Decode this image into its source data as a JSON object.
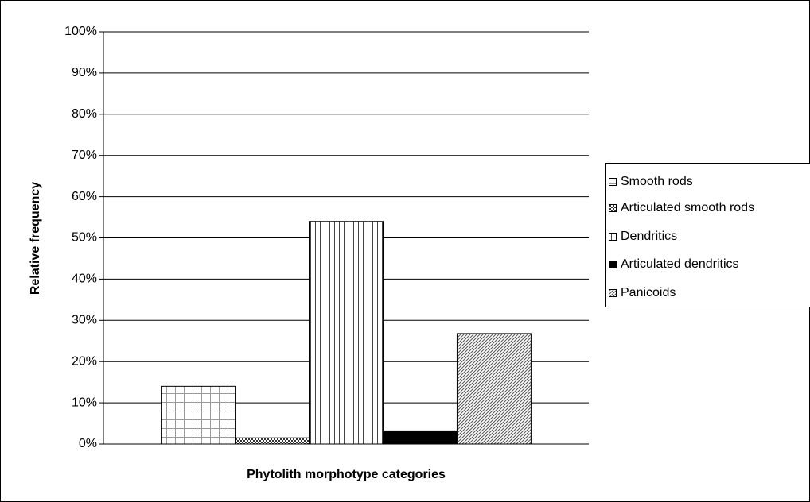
{
  "chart_data": {
    "type": "bar",
    "x_label": "Phytolith morphotype categories",
    "y_label": "Relative frequency",
    "categories": [
      null
    ],
    "series": [
      {
        "name": "Smooth rods",
        "color": "#000000",
        "pattern": "grid",
        "values": [
          14
        ]
      },
      {
        "name": "Articulated smooth rods",
        "color": "#000000",
        "pattern": "checker",
        "values": [
          1.5
        ]
      },
      {
        "name": "Dendritics",
        "color": "#000000",
        "pattern": "vertical",
        "values": [
          54
        ]
      },
      {
        "name": "Articulated dendritics",
        "color": "#000000",
        "pattern": "solid",
        "values": [
          3.2
        ]
      },
      {
        "name": "Panicoids",
        "color": "#000000",
        "pattern": "diagonal",
        "values": [
          26.8
        ]
      }
    ],
    "ylim": [
      0,
      100
    ],
    "yticks": [
      {
        "value": 0,
        "label": "0%"
      },
      {
        "value": 10,
        "label": "10%"
      },
      {
        "value": 20,
        "label": "20%"
      },
      {
        "value": 30,
        "label": "30%"
      },
      {
        "value": 40,
        "label": "40%"
      },
      {
        "value": 50,
        "label": "50%"
      },
      {
        "value": 60,
        "label": "60%"
      },
      {
        "value": 70,
        "label": "70%"
      },
      {
        "value": 80,
        "label": "80%"
      },
      {
        "value": 90,
        "label": "90%"
      },
      {
        "value": 100,
        "label": "100%"
      }
    ],
    "grid": true,
    "legend": "right"
  }
}
